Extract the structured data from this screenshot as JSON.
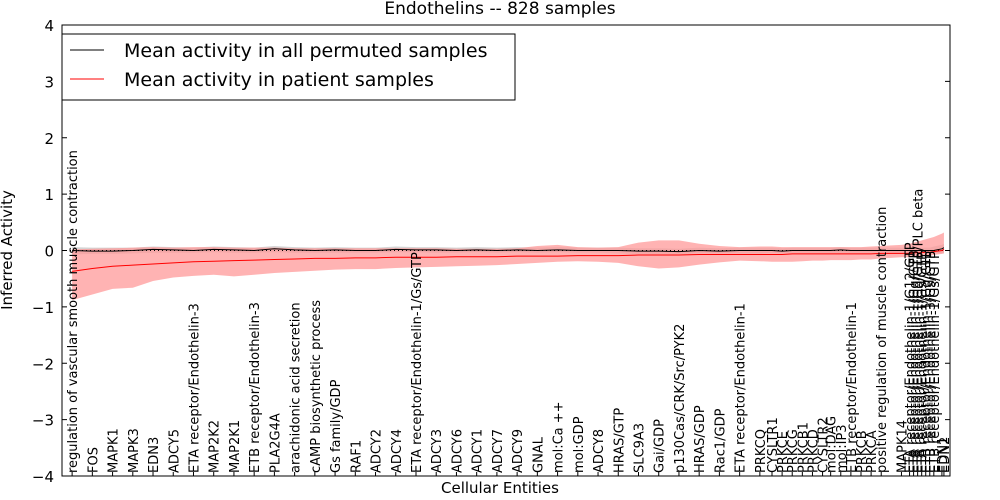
{
  "chart_data": {
    "type": "line",
    "title": "Endothelins -- 828 samples",
    "xlabel": "Cellular Entities",
    "ylabel": "Inferred Activity",
    "ylim": [
      -4,
      4
    ],
    "yticks": [
      -4,
      -3,
      -2,
      -1,
      0,
      1,
      2,
      3,
      4
    ],
    "ytick_labels": [
      "−4",
      "−3",
      "−2",
      "−1",
      "0",
      "1",
      "2",
      "3",
      "4"
    ],
    "grid": false,
    "legend_position": "top-left",
    "legend": [
      {
        "label": "Mean activity in all permuted samples",
        "color": "#000000"
      },
      {
        "label": "Mean activity in patient samples",
        "color": "#ff0000"
      }
    ],
    "entities": [
      "regulation of vascular smooth muscle contraction",
      "FOS",
      "MAPK1",
      "MAPK3",
      "EDN3",
      "ADCY5",
      "ETA receptor/Endothelin-3",
      "MAP2K2",
      "MAP2K1",
      "ETB receptor/Endothelin-3",
      "PLA2G4A",
      "arachidonic acid secretion",
      "cAMP biosynthetic process",
      "Gs family/GDP",
      "RAF1",
      "ADCY2",
      "ADCY4",
      "ETA receptor/Endothelin-1/Gs/GTP",
      "ADCY3",
      "ADCY6",
      "ADCY1",
      "ADCY7",
      "ADCY9",
      "GNAL",
      "mol:Ca ++",
      "mol:GDP",
      "ADCY8",
      "HRAS/GTP",
      "SLC9A3",
      "Gai/GDP",
      "p130Cas/CRK/Src/PYK2",
      "HRAS/GDP",
      "Rac1/GDP",
      "ETA receptor/Endothelin-1",
      "PRKCQ",
      "CYSLTR1",
      "PRKCE",
      "PRKCG",
      "PRKCB1",
      "PRKCD",
      "CYSLTR2",
      "mol:DAG",
      "mol:IP3",
      "ETB receptor/Endothelin-1",
      "PRKCB",
      "PRKCA",
      "positive regulation of muscle contraction",
      "MAPK14",
      "ETA receptor/Endothelin-1/G12/GTP",
      "ETA receptor/Endothelin-1/Gq/GTP",
      "ETA receptor/Endothelin-1/Gq/GTP/PLC beta",
      "ETA receptor/Endothelin-1/Gs/GTP",
      "ETB receptor/Endothelin-1/Gq/GTP",
      "ETB receptor/Endothelin-3/Gs/GTP",
      "ETB receptor/Endothelin-1/Gs/GTP",
      "EDN1",
      "EDN2"
    ],
    "label_positions": [
      0,
      1,
      2,
      3,
      4,
      5,
      6,
      7,
      8,
      9,
      10,
      11,
      12,
      13,
      14,
      15,
      16,
      17,
      18,
      19,
      20,
      21,
      22,
      23,
      24,
      25,
      26,
      27,
      28,
      29,
      30,
      31,
      32,
      33,
      34,
      34.6,
      35.1,
      35.6,
      36.1,
      36.6,
      37.1,
      37.5,
      38,
      38.5,
      39,
      39.5,
      40,
      41,
      41.4,
      41.6,
      41.8,
      42,
      42.2,
      42.4,
      42.6,
      43,
      43.1
    ],
    "xlim": [
      -0.5,
      43.4
    ],
    "permuted_mean": [
      0.0,
      -0.01,
      -0.01,
      0.0,
      0.02,
      0.01,
      0.0,
      0.02,
      0.01,
      0.0,
      0.03,
      0.01,
      0.0,
      0.01,
      0.0,
      0.0,
      0.02,
      0.01,
      0.01,
      0.0,
      0.01,
      0.0,
      0.01,
      0.0,
      0.01,
      0.0,
      0.0,
      0.0,
      -0.01,
      -0.01,
      -0.02,
      0.0,
      -0.01,
      0.0,
      0.0,
      0.0,
      -0.01,
      0.0,
      0.0,
      0.0,
      0.0,
      0.0,
      0.01,
      0.0,
      0.0,
      0.0,
      0.0,
      0.0,
      0.0,
      0.0,
      0.0,
      0.0,
      0.0,
      0.0,
      0.0,
      0.03,
      0.05
    ],
    "patient_mean": [
      -0.37,
      -0.32,
      -0.28,
      -0.26,
      -0.24,
      -0.22,
      -0.2,
      -0.19,
      -0.18,
      -0.17,
      -0.16,
      -0.15,
      -0.14,
      -0.14,
      -0.13,
      -0.13,
      -0.12,
      -0.12,
      -0.12,
      -0.11,
      -0.11,
      -0.11,
      -0.1,
      -0.1,
      -0.1,
      -0.09,
      -0.09,
      -0.09,
      -0.08,
      -0.08,
      -0.08,
      -0.07,
      -0.07,
      -0.07,
      -0.07,
      -0.07,
      -0.07,
      -0.06,
      -0.06,
      -0.06,
      -0.06,
      -0.06,
      -0.06,
      -0.06,
      -0.06,
      -0.06,
      -0.05,
      -0.05,
      -0.05,
      -0.04,
      -0.04,
      -0.04,
      -0.03,
      -0.03,
      -0.02,
      0.0,
      0.02
    ],
    "permuted_band_lower": [
      -0.07,
      -0.06,
      -0.06,
      -0.05,
      -0.04,
      -0.04,
      -0.04,
      -0.03,
      -0.04,
      -0.04,
      -0.03,
      -0.04,
      -0.04,
      -0.04,
      -0.04,
      -0.04,
      -0.03,
      -0.03,
      -0.04,
      -0.04,
      -0.03,
      -0.04,
      -0.03,
      -0.04,
      -0.03,
      -0.04,
      -0.04,
      -0.05,
      -0.06,
      -0.06,
      -0.06,
      -0.05,
      -0.05,
      -0.05,
      -0.05,
      -0.04,
      -0.05,
      -0.04,
      -0.04,
      -0.04,
      -0.04,
      -0.04,
      -0.04,
      -0.04,
      -0.04,
      -0.04,
      -0.04,
      -0.04,
      -0.04,
      -0.04,
      -0.04,
      -0.04,
      -0.04,
      -0.04,
      -0.05,
      -0.05,
      -0.05
    ],
    "permuted_band_upper": [
      0.06,
      0.05,
      0.05,
      0.05,
      0.07,
      0.06,
      0.05,
      0.07,
      0.06,
      0.05,
      0.08,
      0.06,
      0.05,
      0.06,
      0.05,
      0.05,
      0.07,
      0.06,
      0.06,
      0.05,
      0.06,
      0.05,
      0.06,
      0.05,
      0.06,
      0.05,
      0.05,
      0.05,
      0.04,
      0.04,
      0.03,
      0.05,
      0.04,
      0.05,
      0.05,
      0.05,
      0.04,
      0.05,
      0.05,
      0.05,
      0.05,
      0.05,
      0.06,
      0.05,
      0.05,
      0.05,
      0.05,
      0.05,
      0.05,
      0.05,
      0.05,
      0.05,
      0.05,
      0.05,
      0.07,
      0.1,
      0.12
    ],
    "patient_band_lower": [
      -0.88,
      -0.78,
      -0.68,
      -0.66,
      -0.54,
      -0.48,
      -0.45,
      -0.43,
      -0.46,
      -0.43,
      -0.4,
      -0.38,
      -0.36,
      -0.34,
      -0.33,
      -0.33,
      -0.31,
      -0.3,
      -0.29,
      -0.28,
      -0.27,
      -0.26,
      -0.24,
      -0.22,
      -0.2,
      -0.19,
      -0.2,
      -0.22,
      -0.28,
      -0.32,
      -0.3,
      -0.25,
      -0.21,
      -0.18,
      -0.19,
      -0.2,
      -0.2,
      -0.2,
      -0.19,
      -0.18,
      -0.18,
      -0.17,
      -0.17,
      -0.17,
      -0.16,
      -0.16,
      -0.14,
      -0.12,
      -0.12,
      -0.11,
      -0.11,
      -0.1,
      -0.1,
      -0.09,
      -0.08,
      -0.06,
      -0.05
    ],
    "patient_band_upper": [
      0.02,
      0.03,
      0.04,
      0.05,
      0.06,
      0.05,
      0.06,
      0.06,
      0.05,
      0.05,
      0.05,
      0.04,
      0.04,
      0.04,
      0.04,
      0.04,
      0.04,
      0.04,
      0.04,
      0.03,
      0.03,
      0.03,
      0.04,
      0.08,
      0.1,
      0.06,
      0.05,
      0.06,
      0.14,
      0.18,
      0.18,
      0.12,
      0.08,
      0.06,
      0.07,
      0.07,
      0.06,
      0.06,
      0.06,
      0.06,
      0.06,
      0.06,
      0.06,
      0.06,
      0.06,
      0.07,
      0.08,
      0.1,
      0.12,
      0.14,
      0.16,
      0.18,
      0.2,
      0.22,
      0.24,
      0.3,
      0.32
    ],
    "colors": {
      "permuted_line": "#000000",
      "patient_line": "#ff0000",
      "permuted_band": "#b0b0b0",
      "patient_band": "#ff9999"
    }
  }
}
